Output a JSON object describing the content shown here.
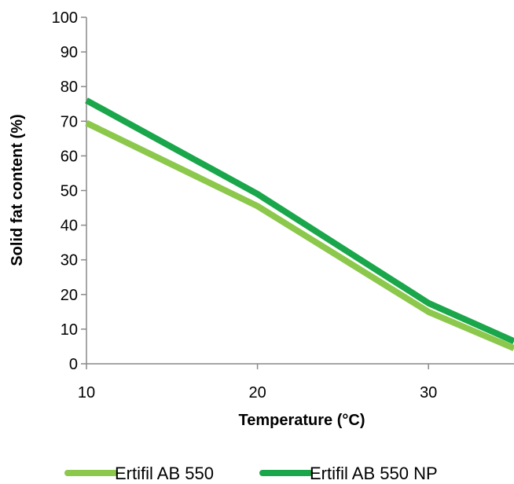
{
  "chart_data": {
    "type": "line",
    "title": "",
    "xlabel": "Temperature (°C)",
    "ylabel": "Solid fat content (%)",
    "xlim": [
      10,
      35
    ],
    "ylim": [
      0,
      100
    ],
    "x_ticks": [
      10,
      20,
      30
    ],
    "y_ticks": [
      0,
      10,
      20,
      30,
      40,
      50,
      60,
      70,
      80,
      90,
      100
    ],
    "grid": false,
    "legend_position": "bottom",
    "series": [
      {
        "name": "Ertifil AB 550",
        "color": "#8cc84b",
        "x": [
          10,
          20,
          30,
          35
        ],
        "y": [
          69.5,
          45.5,
          15,
          4.5
        ]
      },
      {
        "name": "Ertifil AB 550 NP",
        "color": "#1aa64a",
        "x": [
          10,
          20,
          30,
          35
        ],
        "y": [
          76,
          49,
          17.5,
          6.5
        ]
      }
    ]
  }
}
